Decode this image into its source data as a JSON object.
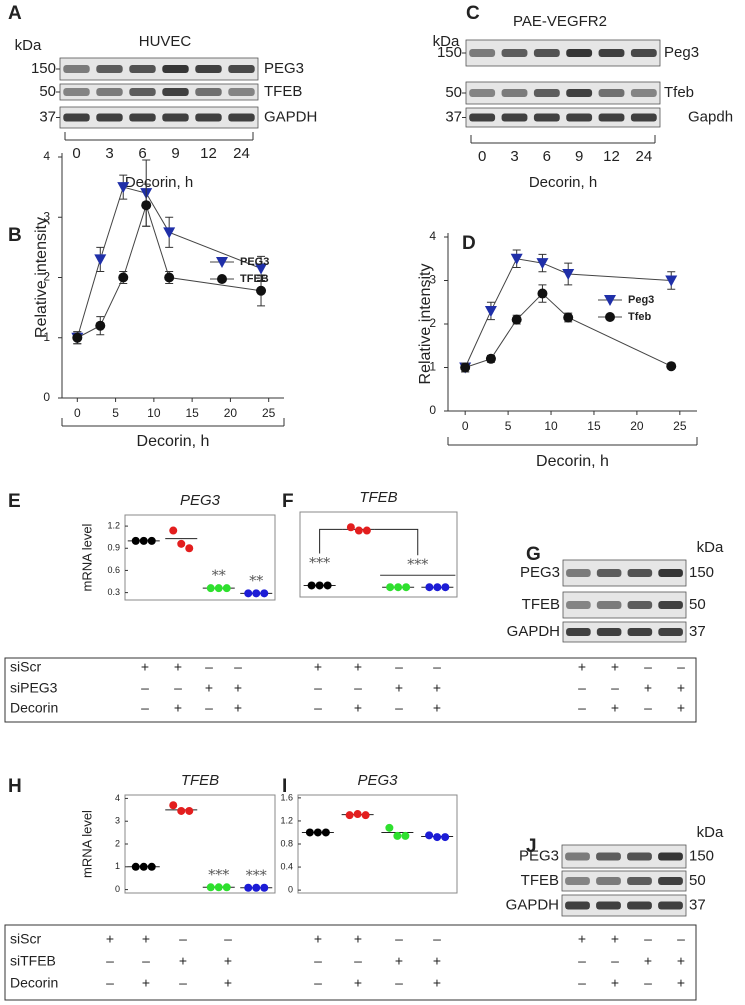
{
  "panel_labels": [
    "A",
    "B",
    "C",
    "D",
    "E",
    "F",
    "G",
    "H",
    "I",
    "J"
  ],
  "blots": [
    {
      "title": "HUVEC",
      "kda": "kDa",
      "markers": [
        "150",
        "50",
        "37"
      ],
      "proteins": [
        "PEG3",
        "TFEB",
        "GAPDH"
      ],
      "lanes": [
        "0",
        "3",
        "6",
        "9",
        "12",
        "24"
      ],
      "xlabel": "Decorin, h"
    },
    {
      "title": "PAE-VEGFR2",
      "kda": "kDa",
      "markers": [
        "150",
        "50",
        "37"
      ],
      "proteins": [
        "Peg3",
        "Tfeb",
        "Gapdh"
      ],
      "lanes": [
        "0",
        "3",
        "6",
        "9",
        "12",
        "24"
      ],
      "xlabel": "Decorin, h"
    },
    {
      "kda": "kDa",
      "markers": [
        "150",
        "50",
        "37"
      ],
      "proteins": [
        "PEG3",
        "TFEB",
        "GAPDH"
      ]
    },
    {
      "kda": "kDa",
      "markers": [
        "150",
        "50",
        "37"
      ],
      "proteins": [
        "PEG3",
        "TFEB",
        "GAPDH"
      ]
    }
  ],
  "chart_data": [
    {
      "type": "line",
      "ylabel": "Relative intensity",
      "xlabel": "Decorin, h",
      "x": [
        0,
        3,
        6,
        9,
        12,
        24
      ],
      "xlim": [
        -2,
        27
      ],
      "xticks": [
        0,
        5,
        10,
        15,
        20,
        25
      ],
      "ylim": [
        0,
        4
      ],
      "yticks": [
        0,
        1,
        2,
        3,
        4
      ],
      "series": [
        {
          "name": "PEG3",
          "color": "#1f2fa8",
          "marker": "triangle",
          "values": [
            1.0,
            2.3,
            3.5,
            3.4,
            2.75,
            2.15
          ],
          "errors": [
            0.1,
            0.2,
            0.2,
            0.55,
            0.25,
            0.2
          ]
        },
        {
          "name": "TFEB",
          "color": "#111111",
          "marker": "circle",
          "values": [
            1.0,
            1.2,
            2.0,
            3.2,
            2.0,
            1.78
          ],
          "errors": [
            0.1,
            0.15,
            0.1,
            0.35,
            0.1,
            0.25
          ]
        }
      ]
    },
    {
      "type": "line",
      "ylabel": "Relative intensity",
      "xlabel": "Decorin, h",
      "x": [
        0,
        3,
        6,
        9,
        12,
        24
      ],
      "xlim": [
        -2,
        27
      ],
      "xticks": [
        0,
        5,
        10,
        15,
        20,
        25
      ],
      "ylim": [
        0,
        4
      ],
      "yticks": [
        0,
        1,
        2,
        3,
        4
      ],
      "series": [
        {
          "name": "Peg3",
          "color": "#1f2fa8",
          "marker": "triangle",
          "values": [
            1.0,
            2.3,
            3.5,
            3.4,
            3.15,
            3.0
          ],
          "errors": [
            0.1,
            0.2,
            0.2,
            0.2,
            0.25,
            0.2
          ]
        },
        {
          "name": "Tfeb",
          "color": "#111111",
          "marker": "circle",
          "values": [
            1.0,
            1.2,
            2.1,
            2.7,
            2.15,
            1.03
          ],
          "errors": [
            0.1,
            0.08,
            0.1,
            0.2,
            0.1,
            0.05
          ]
        }
      ]
    },
    {
      "type": "dot",
      "title": "PEG3",
      "ylabel": "mRNA level",
      "ylim": [
        0.2,
        1.35
      ],
      "yticks": [
        0.3,
        0.6,
        0.9,
        1.2
      ],
      "groups": [
        {
          "color": "#000000",
          "values": [
            1.0,
            1.0,
            1.0
          ],
          "mean": 1.0
        },
        {
          "color": "#e31e1e",
          "values": [
            1.14,
            0.96,
            0.9
          ],
          "mean": 1.03
        },
        {
          "color": "#2ee02e",
          "values": [
            0.36,
            0.36,
            0.36
          ],
          "mean": 0.36,
          "annotation": "**"
        },
        {
          "color": "#1c1cd6",
          "values": [
            0.29,
            0.29,
            0.29
          ],
          "mean": 0.29,
          "annotation": "**"
        }
      ]
    },
    {
      "type": "dot",
      "title": "TFEB",
      "ylim": [
        0.5,
        4.4
      ],
      "brackets": true,
      "groups": [
        {
          "color": "#000000",
          "values": [
            1.03,
            1.03,
            1.03
          ],
          "mean": 1.03,
          "annotation": "***"
        },
        {
          "color": "#e31e1e",
          "values": [
            3.7,
            3.55,
            3.55
          ],
          "mean": 3.6
        },
        {
          "color": "#2ee02e",
          "values": [
            0.95,
            0.95,
            0.95
          ],
          "mean": 0.95,
          "annotation": "***"
        },
        {
          "color": "#1c1cd6",
          "values": [
            0.95,
            0.95,
            0.95
          ],
          "mean": 0.95
        }
      ]
    },
    {
      "type": "dot",
      "title": "TFEB",
      "ylabel": "mRNA level",
      "ylim": [
        -0.15,
        4.15
      ],
      "yticks": [
        0,
        1,
        2,
        3,
        4
      ],
      "groups": [
        {
          "color": "#000000",
          "values": [
            1.0,
            1.0,
            1.0
          ],
          "mean": 1.0
        },
        {
          "color": "#e31e1e",
          "values": [
            3.7,
            3.45,
            3.45
          ],
          "mean": 3.5
        },
        {
          "color": "#2ee02e",
          "values": [
            0.1,
            0.1,
            0.1
          ],
          "mean": 0.1,
          "annotation": "***"
        },
        {
          "color": "#1c1cd6",
          "values": [
            0.08,
            0.08,
            0.08
          ],
          "mean": 0.08,
          "annotation": "***"
        }
      ]
    },
    {
      "type": "dot",
      "title": "PEG3",
      "ylim": [
        -0.05,
        1.65
      ],
      "yticks": [
        0,
        0.4,
        0.8,
        1.2,
        1.6
      ],
      "groups": [
        {
          "color": "#000000",
          "values": [
            1.0,
            1.0,
            1.0
          ],
          "mean": 1.0
        },
        {
          "color": "#e31e1e",
          "values": [
            1.3,
            1.32,
            1.3
          ],
          "mean": 1.31
        },
        {
          "color": "#2ee02e",
          "values": [
            1.08,
            0.94,
            0.94
          ],
          "mean": 1.0
        },
        {
          "color": "#1c1cd6",
          "values": [
            0.95,
            0.92,
            0.92
          ],
          "mean": 0.93
        }
      ]
    }
  ],
  "condition_tables": [
    {
      "rows": [
        [
          "siScr",
          "+",
          "+",
          "–",
          "–"
        ],
        [
          "siPEG3",
          "–",
          "–",
          "+",
          "+"
        ],
        [
          "Decorin",
          "–",
          "+",
          "–",
          "+"
        ]
      ]
    },
    {
      "rows": [
        [
          "siScr",
          "+",
          "+",
          "–",
          "–"
        ],
        [
          "siTFEB",
          "–",
          "–",
          "+",
          "+"
        ],
        [
          "Decorin",
          "–",
          "+",
          "–",
          "+"
        ]
      ]
    }
  ]
}
